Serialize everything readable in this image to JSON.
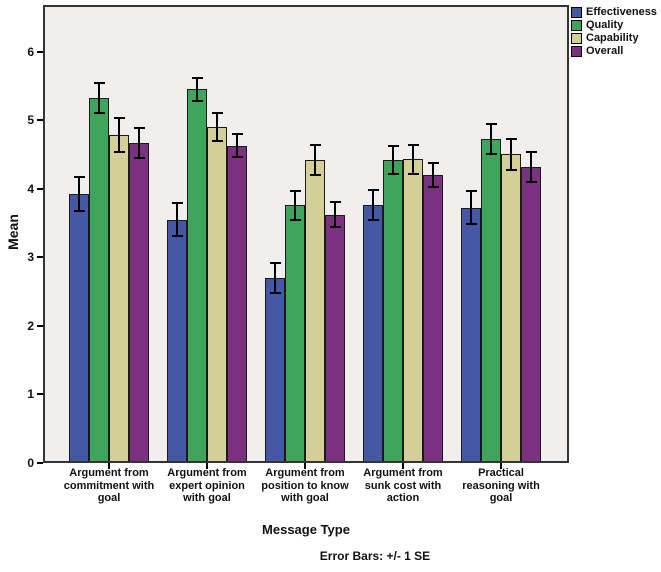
{
  "chart_data": {
    "type": "bar",
    "title": "",
    "xlabel": "Message Type",
    "ylabel": "Mean",
    "footnote": "Error Bars: +/- 1 SE",
    "ylim": [
      0,
      6.68
    ],
    "yticks": [
      0,
      1,
      2,
      3,
      4,
      5,
      6
    ],
    "grid": false,
    "legend_position": "top-right",
    "plot_bg_color": "#f0efee",
    "frame_color": "#333333",
    "categories": [
      "Argument from\ncommitment with\ngoal",
      "Argument from\nexpert opinion\nwith goal",
      "Argument from\nposition to know\nwith goal",
      "Argument from\nsunk cost with\naction",
      "Practical\nreasoning with\ngoal"
    ],
    "series": [
      {
        "name": "Effectiveness",
        "color": "#4458a5",
        "means": [
          3.92,
          3.55,
          2.7,
          3.76,
          3.72
        ],
        "se": [
          0.25,
          0.24,
          0.22,
          0.22,
          0.24
        ]
      },
      {
        "name": "Quality",
        "color": "#3ea55a",
        "means": [
          5.32,
          5.45,
          3.76,
          4.42,
          4.73
        ],
        "se": [
          0.22,
          0.17,
          0.21,
          0.21,
          0.22
        ]
      },
      {
        "name": "Capability",
        "color": "#d4cf97",
        "means": [
          4.78,
          4.9,
          4.42,
          4.43,
          4.5
        ],
        "se": [
          0.25,
          0.2,
          0.22,
          0.21,
          0.23
        ]
      },
      {
        "name": "Overall",
        "color": "#7c3180",
        "means": [
          4.67,
          4.63,
          3.62,
          4.2,
          4.32
        ],
        "se": [
          0.22,
          0.17,
          0.18,
          0.18,
          0.22
        ]
      }
    ]
  }
}
